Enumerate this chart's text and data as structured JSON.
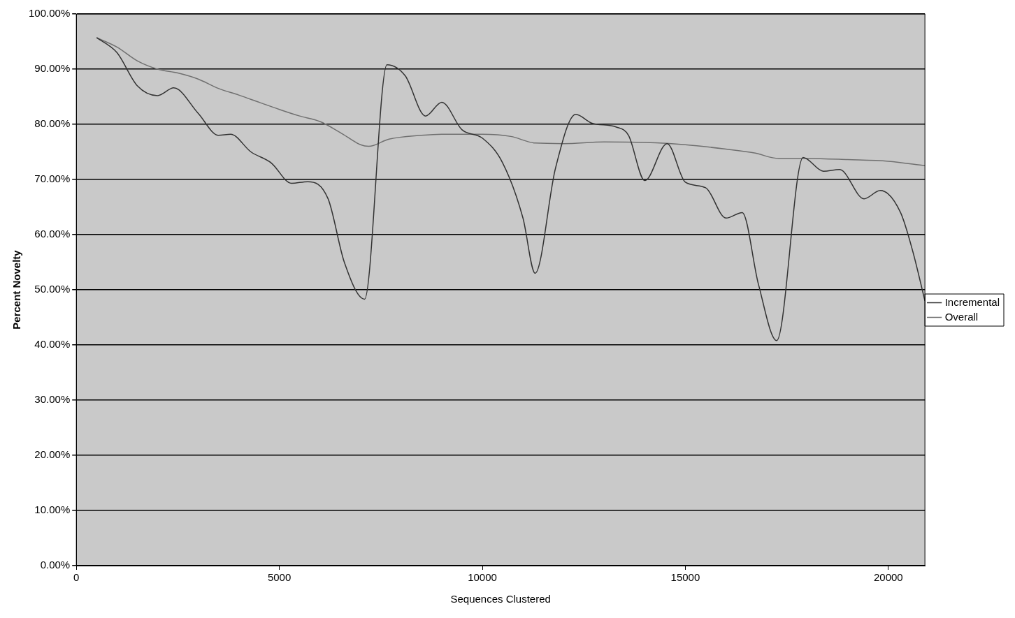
{
  "chart_data": {
    "type": "line",
    "xlabel": "Sequences Clustered",
    "ylabel": "Percent Novelty",
    "xlim": [
      0,
      20900
    ],
    "xticks": [
      0,
      5000,
      10000,
      15000,
      20000
    ],
    "ylim": [
      0,
      100
    ],
    "yticks": [
      {
        "value": 0,
        "label": "0.00%"
      },
      {
        "value": 10,
        "label": "10.00%"
      },
      {
        "value": 20,
        "label": "20.00%"
      },
      {
        "value": 30,
        "label": "30.00%"
      },
      {
        "value": 40,
        "label": "40.00%"
      },
      {
        "value": 50,
        "label": "50.00%"
      },
      {
        "value": 60,
        "label": "60.00%"
      },
      {
        "value": 70,
        "label": "70.00%"
      },
      {
        "value": 80,
        "label": "80.00%"
      },
      {
        "value": 90,
        "label": "90.00%"
      },
      {
        "value": 100,
        "label": "100.00%"
      }
    ],
    "grid": "y",
    "legend": "right",
    "marker": "none",
    "line_style": "solid",
    "series": [
      {
        "name": "Incremental",
        "color": "#333333",
        "x": [
          500,
          1000,
          1500,
          2000,
          2400,
          3000,
          3500,
          3800,
          4300,
          4800,
          5300,
          5700,
          6200,
          6600,
          7100,
          7650,
          8100,
          8600,
          9000,
          9500,
          10000,
          10500,
          11000,
          11300,
          11800,
          12300,
          12700,
          13300,
          13600,
          14000,
          14550,
          15000,
          15500,
          16000,
          16400,
          16800,
          17250,
          17900,
          18400,
          18800,
          19400,
          19800,
          20300,
          20600,
          20900
        ],
        "values": [
          95.7,
          93,
          87,
          85.2,
          86.6,
          82,
          78,
          78.2,
          75,
          73,
          69.3,
          69.6,
          66.5,
          55,
          48.3,
          90.8,
          88.8,
          81.5,
          84,
          79,
          77.5,
          73,
          63,
          53,
          72,
          81.8,
          80.2,
          79.5,
          78,
          69.8,
          76.5,
          69.5,
          68.5,
          63,
          64,
          51,
          40.8,
          74,
          71.5,
          71.8,
          66.5,
          68,
          64,
          57,
          48
        ]
      },
      {
        "name": "Overall",
        "color": "#707070",
        "x": [
          500,
          1000,
          1500,
          2000,
          2500,
          3000,
          3500,
          4000,
          4500,
          5000,
          5500,
          6000,
          6500,
          7000,
          7200,
          7700,
          8500,
          9000,
          10000,
          10700,
          11300,
          12000,
          13000,
          14000,
          15000,
          16000,
          16700,
          17300,
          18000,
          19000,
          20000,
          20900
        ],
        "values": [
          95.7,
          94,
          91.5,
          90,
          89.3,
          88.2,
          86.5,
          85.3,
          84,
          82.7,
          81.5,
          80.5,
          78.5,
          76.3,
          76,
          77.3,
          78,
          78.2,
          78.2,
          77.8,
          76.6,
          76.5,
          76.8,
          76.7,
          76.3,
          75.5,
          74.8,
          73.8,
          73.8,
          73.6,
          73.3,
          72.5
        ]
      }
    ]
  }
}
